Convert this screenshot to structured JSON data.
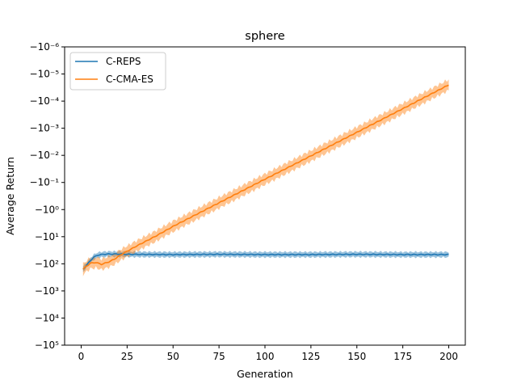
{
  "chart_data": {
    "type": "line",
    "title": "sphere",
    "xlabel": "Generation",
    "ylabel": "Average Return",
    "xlim": [
      -9,
      209
    ],
    "ylim_exponents": [
      -6,
      5
    ],
    "yscale": "symlog-negative",
    "xticks": [
      0,
      25,
      50,
      75,
      100,
      125,
      150,
      175,
      200
    ],
    "yticks": [
      {
        "exp": -6,
        "label": "−10⁻⁶"
      },
      {
        "exp": -5,
        "label": "−10⁻⁵"
      },
      {
        "exp": -4,
        "label": "−10⁻⁴"
      },
      {
        "exp": -3,
        "label": "−10⁻³"
      },
      {
        "exp": -2,
        "label": "−10⁻²"
      },
      {
        "exp": -1,
        "label": "−10⁻¹"
      },
      {
        "exp": 0,
        "label": "−10⁰"
      },
      {
        "exp": 1,
        "label": "−10¹"
      },
      {
        "exp": 2,
        "label": "−10²"
      },
      {
        "exp": 3,
        "label": "−10³"
      },
      {
        "exp": 4,
        "label": "−10⁴"
      },
      {
        "exp": 5,
        "label": "−10⁵"
      }
    ],
    "legend_position": "top-left",
    "grid": false,
    "series": [
      {
        "name": "C-REPS",
        "color": "#1f77b4",
        "band_width_exp": 0.1,
        "points": [
          [
            1,
            2.2
          ],
          [
            3,
            2.05
          ],
          [
            5,
            1.88
          ],
          [
            7,
            1.75
          ],
          [
            9,
            1.68
          ],
          [
            12,
            1.65
          ],
          [
            15,
            1.64
          ],
          [
            20,
            1.64
          ],
          [
            25,
            1.65
          ],
          [
            50,
            1.66
          ],
          [
            75,
            1.65
          ],
          [
            100,
            1.66
          ],
          [
            125,
            1.66
          ],
          [
            150,
            1.65
          ],
          [
            175,
            1.66
          ],
          [
            200,
            1.66
          ]
        ]
      },
      {
        "name": "C-CMA-ES",
        "color": "#ff7f0e",
        "band_width_exp": 0.2,
        "points": [
          [
            1,
            2.2
          ],
          [
            3,
            2.08
          ],
          [
            5,
            1.98
          ],
          [
            8,
            1.95
          ],
          [
            11,
            2.02
          ],
          [
            15,
            1.93
          ],
          [
            18,
            1.83
          ],
          [
            22,
            1.65
          ],
          [
            30,
            1.35
          ],
          [
            40,
            1.0
          ],
          [
            50,
            0.62
          ],
          [
            75,
            -0.25
          ],
          [
            100,
            -1.12
          ],
          [
            125,
            -1.98
          ],
          [
            150,
            -2.85
          ],
          [
            175,
            -3.72
          ],
          [
            200,
            -4.6
          ]
        ]
      }
    ]
  }
}
